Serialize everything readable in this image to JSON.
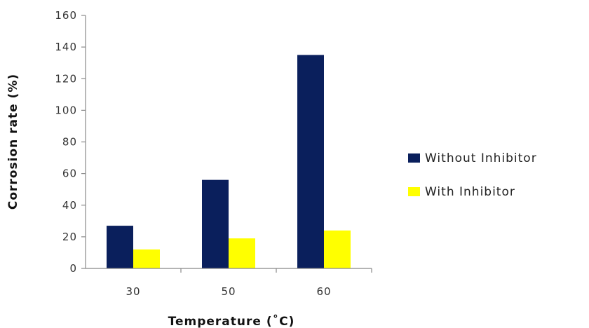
{
  "chart_data": {
    "type": "bar",
    "title": "",
    "xlabel": "Temperature (˚C)",
    "ylabel": "Corrosion rate (%)",
    "categories": [
      "30",
      "50",
      "60"
    ],
    "series": [
      {
        "name": "Without Inhibitor",
        "values": [
          27,
          56,
          135
        ],
        "color": "#0a1f5c"
      },
      {
        "name": "With Inhibitor",
        "values": [
          12,
          19,
          24
        ],
        "color": "#ffff00"
      }
    ],
    "ylim": [
      0,
      160
    ],
    "yticks": [
      "0",
      "20",
      "40",
      "60",
      "80",
      "100",
      "120",
      "140",
      "160"
    ],
    "ytick_values": [
      0,
      20,
      40,
      60,
      80,
      100,
      120,
      140,
      160
    ],
    "grid": false,
    "legend_position": "right"
  }
}
